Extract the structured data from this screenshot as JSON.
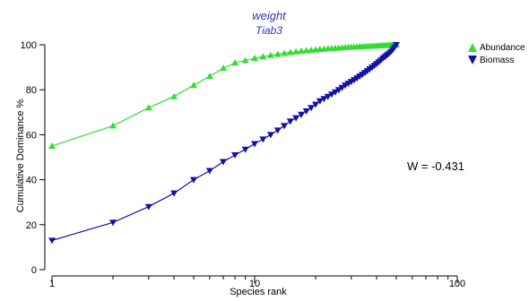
{
  "chart_data": {
    "type": "line",
    "title": "weight",
    "subtitle": "Tiab3",
    "xlabel": "Species rank",
    "ylabel": "Cumulative Dominance %",
    "x_scale": "log",
    "xlim": [
      1,
      100
    ],
    "ylim": [
      0,
      100
    ],
    "x_ticks": [
      "1",
      "10",
      "100"
    ],
    "y_ticks": [
      "0",
      "20",
      "40",
      "60",
      "80",
      "100"
    ],
    "legend_position": "top-right",
    "annotation": "W = -0.431",
    "series": [
      {
        "name": "Abundance",
        "color": "#33dd33",
        "marker": "triangle-up",
        "x": [
          1,
          2,
          3,
          4,
          5,
          6,
          7,
          8,
          9,
          10,
          11,
          12,
          13,
          14,
          15,
          16,
          17,
          18,
          19,
          20,
          21,
          22,
          23,
          24,
          25,
          26,
          27,
          28,
          29,
          30,
          31,
          32,
          33,
          34,
          35,
          36,
          37,
          38,
          39,
          40,
          41,
          42,
          43,
          44,
          45,
          46,
          47,
          48,
          49,
          50
        ],
        "y": [
          55,
          64,
          72,
          77,
          82,
          86,
          89.6,
          92,
          93,
          94,
          94.7,
          95.3,
          95.8,
          96.2,
          96.6,
          96.9,
          97.2,
          97.4,
          97.6,
          97.8,
          98,
          98.1,
          98.3,
          98.4,
          98.5,
          98.6,
          98.7,
          98.8,
          98.9,
          99,
          99.05,
          99.1,
          99.2,
          99.25,
          99.3,
          99.35,
          99.4,
          99.45,
          99.5,
          99.55,
          99.6,
          99.65,
          99.7,
          99.75,
          99.8,
          99.85,
          99.9,
          99.93,
          99.96,
          100
        ]
      },
      {
        "name": "Biomass",
        "color": "#1111aa",
        "marker": "triangle-down",
        "x": [
          1,
          2,
          3,
          4,
          5,
          6,
          7,
          8,
          9,
          10,
          11,
          12,
          13,
          14,
          15,
          16,
          17,
          18,
          19,
          20,
          21,
          22,
          23,
          24,
          25,
          26,
          27,
          28,
          29,
          30,
          31,
          32,
          33,
          34,
          35,
          36,
          37,
          38,
          39,
          40,
          41,
          42,
          43,
          44,
          45,
          46,
          47,
          48,
          49,
          50
        ],
        "y": [
          13,
          21,
          28,
          34,
          40,
          44,
          48,
          51,
          53.5,
          56,
          58,
          60,
          62,
          64,
          66,
          67.5,
          69,
          70.5,
          72,
          73.5,
          75,
          76,
          77,
          78,
          79,
          80,
          81,
          82,
          82.8,
          83.6,
          84.4,
          85.2,
          86,
          86.8,
          87.6,
          88.4,
          89.2,
          90,
          90.8,
          91.6,
          92.4,
          93.2,
          94,
          94.7,
          95.4,
          96.1,
          96.9,
          97.8,
          98.9,
          100
        ]
      }
    ]
  }
}
